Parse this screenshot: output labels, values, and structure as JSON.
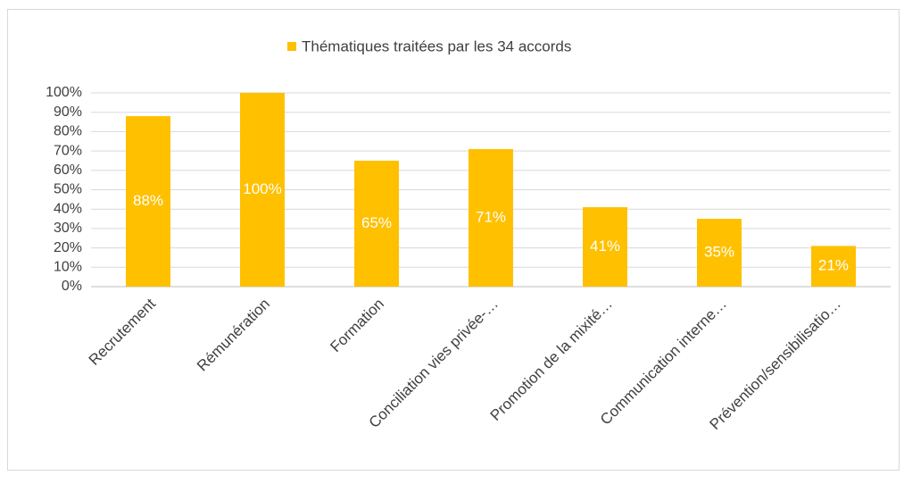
{
  "chart_data": {
    "type": "bar",
    "legend_label": "Thématiques traitées par les 34 accords",
    "categories": [
      "Recrutement",
      "Rémunération",
      "Formation",
      "Conciliation vies privée-…",
      "Promotion de la mixité…",
      "Communication interne…",
      "Prévention/sensibilisatio…"
    ],
    "values": [
      88,
      100,
      65,
      71,
      41,
      35,
      21
    ],
    "value_labels": [
      "88%",
      "100%",
      "65%",
      "71%",
      "41%",
      "35%",
      "21%"
    ],
    "color": "#ffc000",
    "ylim": [
      0,
      100
    ],
    "yticks": [
      {
        "value": 0,
        "label": "0%"
      },
      {
        "value": 10,
        "label": "10%"
      },
      {
        "value": 20,
        "label": "20%"
      },
      {
        "value": 30,
        "label": "30%"
      },
      {
        "value": 40,
        "label": "40%"
      },
      {
        "value": 50,
        "label": "50%"
      },
      {
        "value": 60,
        "label": "60%"
      },
      {
        "value": 70,
        "label": "70%"
      },
      {
        "value": 80,
        "label": "80%"
      },
      {
        "value": 90,
        "label": "90%"
      },
      {
        "value": 100,
        "label": "100%"
      }
    ],
    "grid": true,
    "legend": "top"
  }
}
